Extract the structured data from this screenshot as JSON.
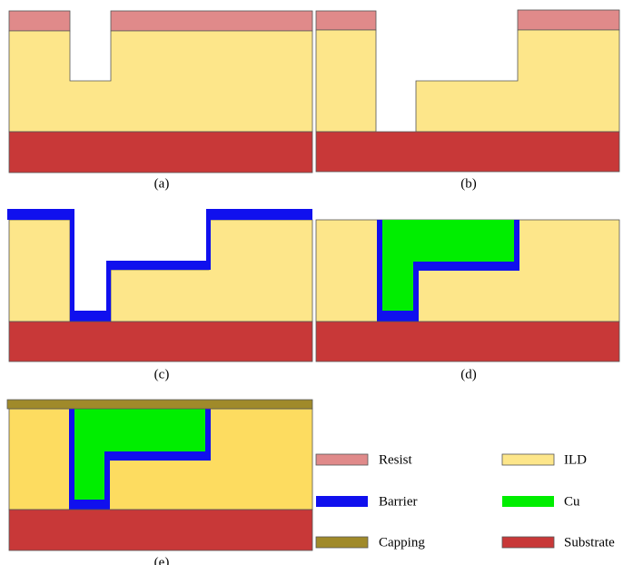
{
  "panels": [
    {
      "label": "(a)"
    },
    {
      "label": "(b)"
    },
    {
      "label": "(c)"
    },
    {
      "label": "(d)"
    },
    {
      "label": "(e)"
    }
  ],
  "legend": [
    {
      "label": "Resist"
    },
    {
      "label": "ILD"
    },
    {
      "label": "Barrier"
    },
    {
      "label": "Cu"
    },
    {
      "label": "Capping"
    },
    {
      "label": "Substrate"
    }
  ]
}
